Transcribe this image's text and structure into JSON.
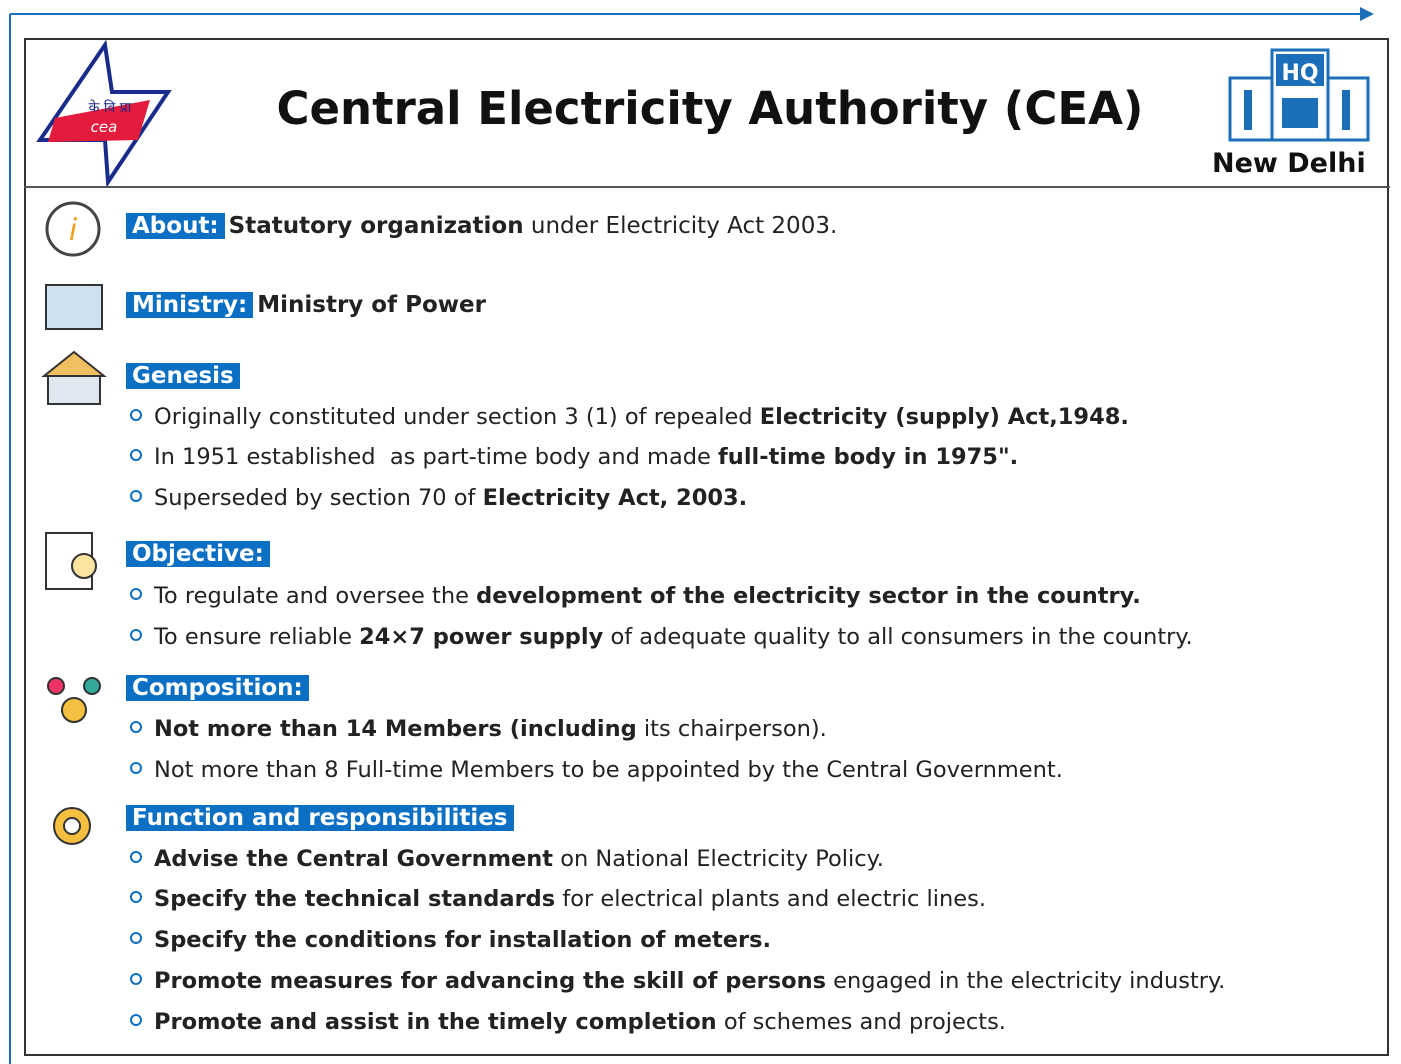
{
  "header": {
    "title": "Central Electricity Authority (CEA)",
    "logo_text": [
      "के वि प्रा",
      "cea"
    ],
    "hq_label": "HQ",
    "location": "New Delhi"
  },
  "sections": [
    {
      "label": "About:",
      "text": [
        {
          "text": "Statutory organization",
          "bold": true
        },
        {
          "text": " under Electricity Act 2003.",
          "bold": false
        }
      ]
    },
    {
      "label": "Ministry:",
      "text": [
        {
          "text": "Ministry of Power",
          "bold": true
        }
      ]
    },
    {
      "label": "Genesis",
      "bullets": [
        [
          {
            "text": "Originally constituted under section 3 (1) of repealed ",
            "bold": false
          },
          {
            "text": "Electricity (supply) Act,1948.",
            "bold": true
          }
        ],
        [
          {
            "text": "In 1951 established  as part-time body and made ",
            "bold": false
          },
          {
            "text": "full-time body in 1975\".",
            "bold": true
          }
        ],
        [
          {
            "text": "Superseded by section 70 of ",
            "bold": false
          },
          {
            "text": "Electricity Act, 2003.",
            "bold": true
          }
        ]
      ]
    },
    {
      "label": "Objective:",
      "bullets": [
        [
          {
            "text": "To regulate and oversee the ",
            "bold": false
          },
          {
            "text": "development of the electricity sector in the country.",
            "bold": true
          }
        ],
        [
          {
            "text": "To ensure reliable ",
            "bold": false
          },
          {
            "text": "24×7 power supply",
            "bold": true
          },
          {
            "text": " of adequate quality to all consumers in the country.",
            "bold": false
          }
        ]
      ]
    },
    {
      "label": "Composition:",
      "bullets": [
        [
          {
            "text": "Not more than 14 Members (including",
            "bold": true
          },
          {
            "text": " its chairperson).",
            "bold": false
          }
        ],
        [
          {
            "text": "Not more than 8 Full-time Members to be appointed by the Central Government.",
            "bold": false
          }
        ]
      ]
    },
    {
      "label": "Function and responsibilities",
      "bullets": [
        [
          {
            "text": "Advise the Central Government",
            "bold": true
          },
          {
            "text": " on National Electricity Policy.",
            "bold": false
          }
        ],
        [
          {
            "text": "Specify the technical standards",
            "bold": true
          },
          {
            "text": " for electrical plants and electric lines.",
            "bold": false
          }
        ],
        [
          {
            "text": "Specify the conditions for installation of meters.",
            "bold": true
          }
        ],
        [
          {
            "text": "Promote measures for advancing the skill of persons",
            "bold": true
          },
          {
            "text": " engaged in the electricity industry.",
            "bold": false
          }
        ],
        [
          {
            "text": "Promote and assist in the timely completion",
            "bold": true
          },
          {
            "text": " of schemes and projects.",
            "bold": false
          }
        ]
      ]
    }
  ]
}
